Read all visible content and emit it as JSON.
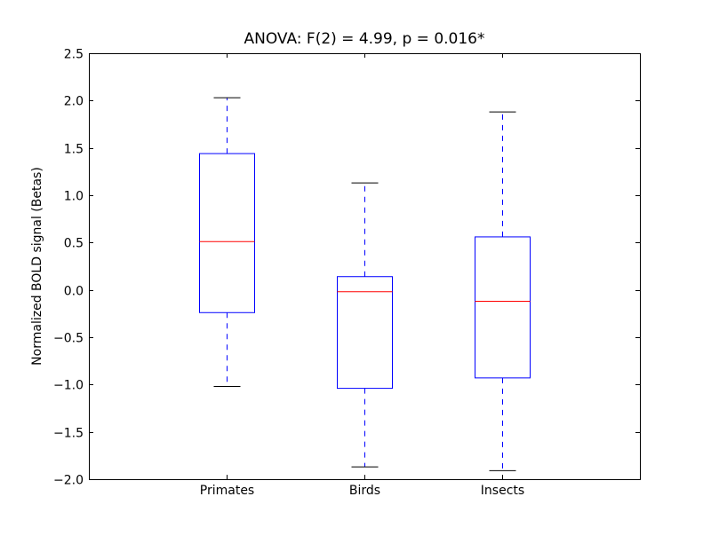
{
  "chart_data": {
    "type": "boxplot",
    "title": "ANOVA: F(2) = 4.99, p = 0.016*",
    "xlabel": "",
    "ylabel": "Normalized BOLD signal (Betas)",
    "ylim": [
      -2.0,
      2.5
    ],
    "yticks": [
      -2.0,
      -1.5,
      -1.0,
      -0.5,
      0.0,
      0.5,
      1.0,
      1.5,
      2.0,
      2.5
    ],
    "ytick_labels": [
      "−2.0",
      "−1.5",
      "−1.0",
      "−0.5",
      "0.0",
      "0.5",
      "1.0",
      "1.5",
      "2.0",
      "2.5"
    ],
    "categories": [
      "Primates",
      "Birds",
      "Insects"
    ],
    "boxes": [
      {
        "whisker_low": -1.02,
        "q1": -0.24,
        "median": 0.51,
        "q3": 1.44,
        "whisker_high": 2.03
      },
      {
        "whisker_low": -1.87,
        "q1": -1.04,
        "median": -0.02,
        "q3": 0.14,
        "whisker_high": 1.13
      },
      {
        "whisker_low": -1.91,
        "q1": -0.93,
        "median": -0.12,
        "q3": 0.56,
        "whisker_high": 1.88
      }
    ],
    "grid": false,
    "colors": {
      "box": "#0000ff",
      "median": "#ff0000",
      "whisker": "#0000ff",
      "cap": "#000000"
    }
  }
}
